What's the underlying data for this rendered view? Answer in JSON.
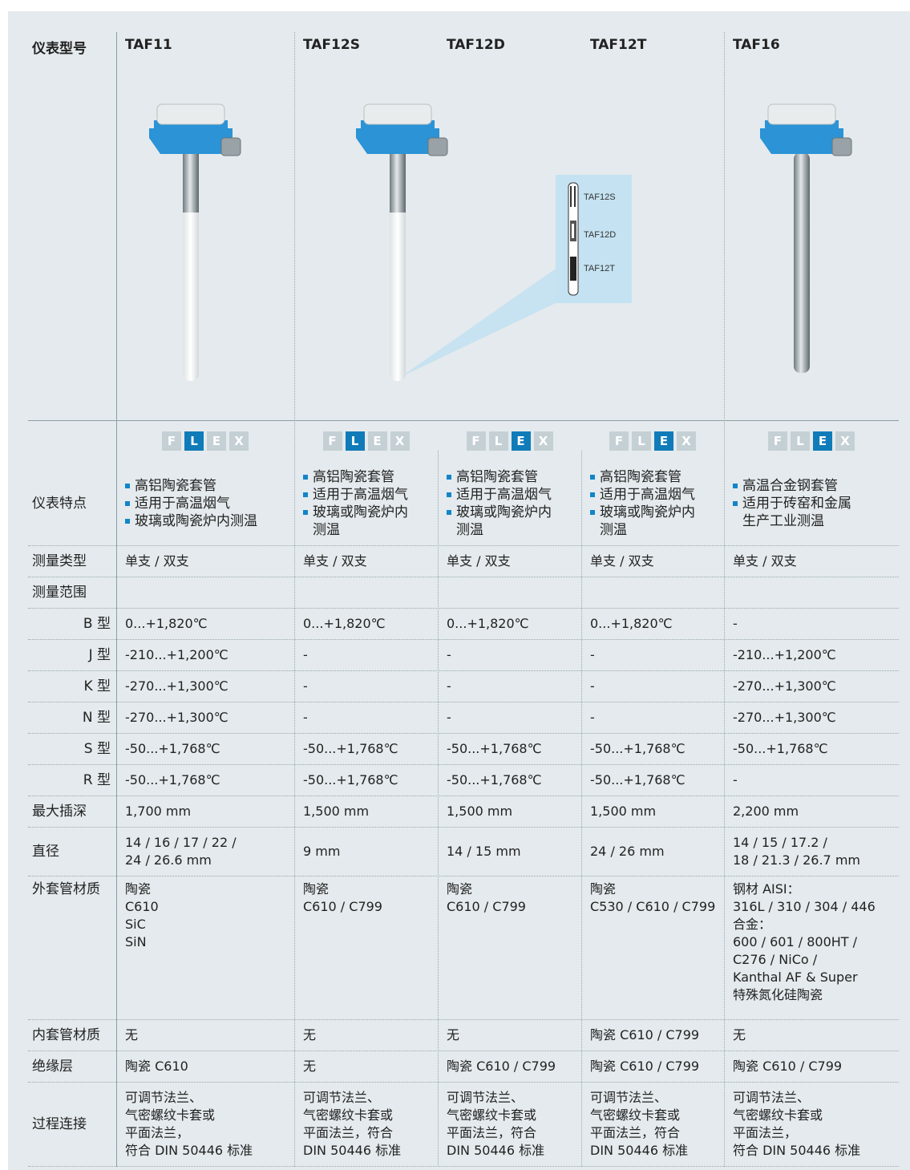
{
  "header": {
    "label": "仪表型号",
    "models": [
      "TAF11",
      "TAF12S",
      "TAF12D",
      "TAF12T",
      "TAF16"
    ]
  },
  "inset_labels": [
    "TAF12S",
    "TAF12D",
    "TAF12T"
  ],
  "flex": {
    "letters": [
      "F",
      "L",
      "E",
      "X"
    ],
    "highlight": [
      "L",
      "L",
      "E",
      "E",
      "E"
    ]
  },
  "table": {
    "rows": [
      {
        "label": "仪表特点",
        "cells": [
          [
            [
              "高铝陶瓷套管"
            ],
            [
              "适用于高温烟气"
            ],
            [
              "玻璃或陶瓷炉内测温"
            ]
          ],
          [
            [
              "高铝陶瓷套管"
            ],
            [
              "适用于高温烟气"
            ],
            [
              "玻璃或陶瓷炉内",
              "测温"
            ]
          ],
          [
            [
              "高铝陶瓷套管"
            ],
            [
              "适用于高温烟气"
            ],
            [
              "玻璃或陶瓷炉内",
              "测温"
            ]
          ],
          [
            [
              "高铝陶瓷套管"
            ],
            [
              "适用于高温烟气"
            ],
            [
              "玻璃或陶瓷炉内",
              "测温"
            ]
          ],
          [
            [
              "高温合金钢套管"
            ],
            [
              "适用于砖窑和金属",
              "生产工业测温"
            ]
          ]
        ]
      },
      {
        "label": "测量类型",
        "cells": [
          "单支 / 双支",
          "单支 / 双支",
          "单支 / 双支",
          "单支 / 双支",
          "单支 / 双支"
        ]
      },
      {
        "label": "测量范围",
        "subrows": [
          {
            "label": "B 型",
            "cells": [
              "0...+1,820℃",
              "0...+1,820℃",
              "0...+1,820℃",
              "0...+1,820℃",
              "-"
            ]
          },
          {
            "label": "J 型",
            "cells": [
              "-210...+1,200℃",
              "-",
              "-",
              "-",
              "-210...+1,200℃"
            ]
          },
          {
            "label": "K 型",
            "cells": [
              "-270...+1,300℃",
              "-",
              "-",
              "-",
              "-270...+1,300℃"
            ]
          },
          {
            "label": "N 型",
            "cells": [
              "-270...+1,300℃",
              "-",
              "-",
              "-",
              "-270...+1,300℃"
            ]
          },
          {
            "label": "S 型",
            "cells": [
              "-50...+1,768℃",
              "-50...+1,768℃",
              "-50...+1,768℃",
              "-50...+1,768℃",
              "-50...+1,768℃"
            ]
          },
          {
            "label": "R 型",
            "cells": [
              "-50...+1,768℃",
              "-50...+1,768℃",
              "-50...+1,768℃",
              "-50...+1,768℃",
              "-"
            ]
          }
        ]
      },
      {
        "label": "最大插深",
        "cells": [
          "1,700 mm",
          "1,500 mm",
          "1,500 mm",
          "1,500 mm",
          "2,200 mm"
        ]
      },
      {
        "label": "直径",
        "cells": [
          [
            "14 / 16 / 17 / 22 /",
            "24 / 26.6 mm"
          ],
          "9 mm",
          "14 / 15 mm",
          "24 / 26 mm",
          [
            "14 / 15  / 17.2 /",
            "18 /  21.3 / 26.7 mm"
          ]
        ]
      },
      {
        "label": "外套管材质",
        "cells": [
          [
            "陶瓷",
            "C610",
            "SiC",
            "SiN"
          ],
          [
            "陶瓷",
            "C610 / C799"
          ],
          [
            "陶瓷",
            "C610 / C799"
          ],
          [
            "陶瓷",
            "C530 / C610 / C799"
          ],
          [
            "钢材 AISI：",
            "316L / 310 / 304 / 446",
            "合金：",
            "600 / 601 / 800HT /",
            "C276 / NiCo /",
            "Kanthal AF & Super",
            "特殊氮化硅陶瓷"
          ]
        ]
      },
      {
        "label": "内套管材质",
        "cells": [
          "无",
          "无",
          "无",
          "陶瓷 C610 / C799",
          "无"
        ]
      },
      {
        "label": "绝缘层",
        "cells": [
          "陶瓷 C610",
          "无",
          "陶瓷 C610 / C799",
          "陶瓷 C610 / C799",
          "陶瓷 C610 / C799"
        ]
      },
      {
        "label": "过程连接",
        "cells": [
          [
            "可调节法兰、",
            "气密螺纹卡套或",
            "平面法兰，",
            "符合 DIN 50446 标准"
          ],
          [
            "可调节法兰、",
            "气密螺纹卡套或",
            "平面法兰，符合",
            "DIN 50446 标准"
          ],
          [
            "可调节法兰、",
            "气密螺纹卡套或",
            "平面法兰，符合",
            "DIN 50446 标准"
          ],
          [
            "可调节法兰、",
            "气密螺纹卡套或",
            "平面法兰，符合",
            "DIN 50446 标准"
          ],
          [
            "可调节法兰、",
            "气密螺纹卡套或",
            "平面法兰，",
            "符合 DIN 50446 标准"
          ]
        ]
      }
    ]
  }
}
